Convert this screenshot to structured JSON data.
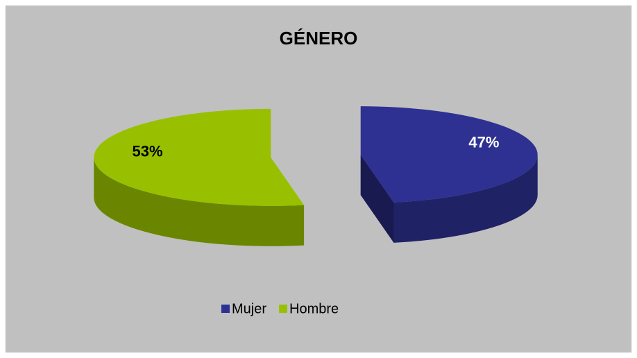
{
  "chart_data": {
    "type": "pie3d",
    "title": "GÉNERO",
    "categories": [
      "Mujer",
      "Hombre"
    ],
    "values": [
      47,
      53
    ],
    "value_labels": [
      "47%",
      "53%"
    ],
    "colors": [
      "#2e3192",
      "#99c000"
    ],
    "legend": "bottom"
  }
}
